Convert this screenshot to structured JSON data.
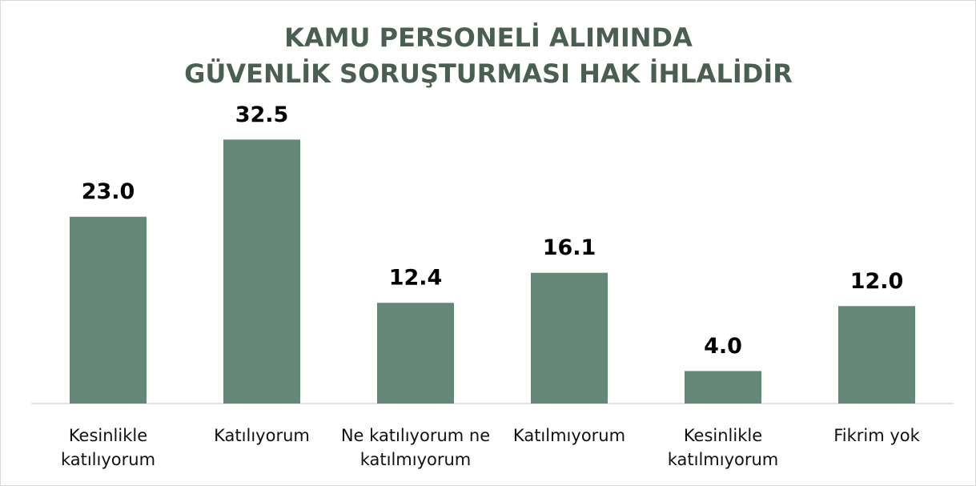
{
  "chart_data": {
    "type": "bar",
    "title": [
      "KAMU PERSONELİ ALIMINDA",
      "GÜVENLİK SORUŞTURMASI HAK İHLALİDİR"
    ],
    "categories": [
      "Kesinlikle katılıyorum",
      "Katılıyorum",
      "Ne katılıyorum ne katılmıyorum",
      "Katılmıyorum",
      "Kesinlikle katılmıyorum",
      "Fikrim yok"
    ],
    "values": [
      23.0,
      32.5,
      12.4,
      16.1,
      4.0,
      12.0
    ],
    "value_labels": [
      "23.0",
      "32.5",
      "12.4",
      "16.1",
      "4.0",
      "12.0"
    ],
    "color": "#648777",
    "ylim": [
      0,
      35
    ]
  }
}
